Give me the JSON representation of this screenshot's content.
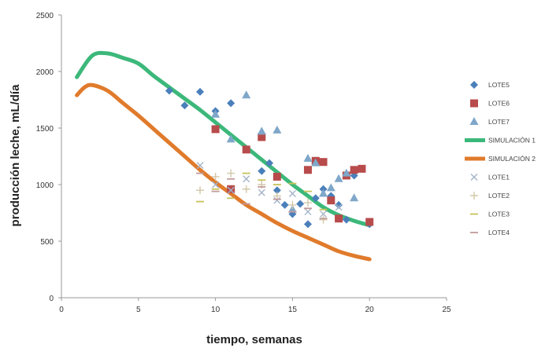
{
  "chart_data": {
    "type": "scatter",
    "title": "",
    "xlabel": "tiempo, semanas",
    "ylabel": "producción leche, mL/día",
    "xlim": [
      0,
      25
    ],
    "ylim": [
      0,
      2500
    ],
    "xticks": [
      0,
      5,
      10,
      15,
      20,
      25
    ],
    "yticks": [
      0,
      500,
      1000,
      1500,
      2000,
      2500
    ],
    "grid": false,
    "legend_position": "right",
    "series": [
      {
        "name": "LOTE5",
        "kind": "scatter",
        "marker": "diamond",
        "color": "#4a7fba",
        "points": [
          [
            7,
            1830
          ],
          [
            8,
            1700
          ],
          [
            9,
            1820
          ],
          [
            10,
            1650
          ],
          [
            11,
            1720
          ],
          [
            13,
            1120
          ],
          [
            13.5,
            1190
          ],
          [
            14,
            950
          ],
          [
            14.5,
            820
          ],
          [
            15,
            740
          ],
          [
            15.5,
            830
          ],
          [
            16,
            650
          ],
          [
            16.5,
            880
          ],
          [
            17,
            960
          ],
          [
            17.5,
            900
          ],
          [
            18,
            820
          ],
          [
            18.5,
            690
          ],
          [
            19,
            1080
          ],
          [
            20,
            650
          ]
        ]
      },
      {
        "name": "LOTE6",
        "kind": "scatter",
        "marker": "square",
        "color": "#b84b4b",
        "points": [
          [
            10,
            1490
          ],
          [
            11,
            960
          ],
          [
            12,
            1310
          ],
          [
            13,
            1420
          ],
          [
            14,
            1070
          ],
          [
            16,
            1130
          ],
          [
            16.5,
            1210
          ],
          [
            17,
            1200
          ],
          [
            17.5,
            860
          ],
          [
            18,
            700
          ],
          [
            18.5,
            1080
          ],
          [
            19,
            1130
          ],
          [
            19.5,
            1140
          ],
          [
            20,
            670
          ]
        ]
      },
      {
        "name": "LOTE7",
        "kind": "scatter",
        "marker": "triangle",
        "color": "#7fa7c9",
        "points": [
          [
            10,
            1620
          ],
          [
            11,
            1400
          ],
          [
            12,
            1790
          ],
          [
            13,
            1470
          ],
          [
            14,
            1480
          ],
          [
            15,
            780
          ],
          [
            16,
            1230
          ],
          [
            16.5,
            1190
          ],
          [
            17,
            920
          ],
          [
            17.5,
            970
          ],
          [
            18,
            1050
          ],
          [
            18.5,
            1100
          ],
          [
            19,
            880
          ]
        ]
      },
      {
        "name": "SIMULACIÓN 1",
        "kind": "line",
        "color": "#3cb87a",
        "points": [
          [
            1,
            1950
          ],
          [
            2,
            2140
          ],
          [
            3,
            2160
          ],
          [
            4,
            2120
          ],
          [
            5,
            2070
          ],
          [
            6,
            1960
          ],
          [
            7,
            1860
          ],
          [
            8,
            1760
          ],
          [
            9,
            1660
          ],
          [
            10,
            1550
          ],
          [
            11,
            1440
          ],
          [
            12,
            1330
          ],
          [
            13,
            1220
          ],
          [
            14,
            1110
          ],
          [
            15,
            1000
          ],
          [
            16,
            900
          ],
          [
            17,
            800
          ],
          [
            18,
            730
          ],
          [
            19,
            680
          ],
          [
            20,
            640
          ]
        ]
      },
      {
        "name": "SIMULACIÓN 2",
        "kind": "line",
        "color": "#e07b2c",
        "points": [
          [
            1,
            1790
          ],
          [
            1.5,
            1860
          ],
          [
            2,
            1880
          ],
          [
            3,
            1830
          ],
          [
            4,
            1720
          ],
          [
            5,
            1610
          ],
          [
            6,
            1490
          ],
          [
            7,
            1370
          ],
          [
            8,
            1250
          ],
          [
            9,
            1130
          ],
          [
            10,
            1020
          ],
          [
            11,
            920
          ],
          [
            12,
            820
          ],
          [
            13,
            740
          ],
          [
            14,
            660
          ],
          [
            15,
            590
          ],
          [
            16,
            530
          ],
          [
            17,
            470
          ],
          [
            18,
            410
          ],
          [
            19,
            370
          ],
          [
            20,
            340
          ]
        ]
      },
      {
        "name": "LOTE1",
        "kind": "scatter",
        "marker": "x",
        "color": "#a3b3c8",
        "points": [
          [
            9,
            1170
          ],
          [
            10,
            1000
          ],
          [
            11,
            950
          ],
          [
            12,
            1050
          ],
          [
            13,
            930
          ],
          [
            14,
            860
          ],
          [
            15,
            920
          ],
          [
            16,
            760
          ],
          [
            17,
            740
          ],
          [
            18,
            800
          ]
        ]
      },
      {
        "name": "LOTE2",
        "kind": "scatter",
        "marker": "plus",
        "color": "#d2c7a8",
        "points": [
          [
            9,
            950
          ],
          [
            10,
            1070
          ],
          [
            11,
            1100
          ],
          [
            12,
            960
          ],
          [
            13,
            1000
          ],
          [
            14,
            900
          ],
          [
            15,
            820
          ],
          [
            16,
            840
          ],
          [
            17,
            690
          ]
        ]
      },
      {
        "name": "LOTE3",
        "kind": "scatter",
        "marker": "dash",
        "color": "#c8c25a",
        "points": [
          [
            9,
            850
          ],
          [
            10,
            960
          ],
          [
            11,
            880
          ],
          [
            12,
            1100
          ],
          [
            13,
            1040
          ],
          [
            14,
            1000
          ],
          [
            15,
            1010
          ],
          [
            16,
            940
          ],
          [
            17,
            780
          ]
        ]
      },
      {
        "name": "LOTE4",
        "kind": "scatter",
        "marker": "dash",
        "color": "#c29a9a",
        "points": [
          [
            9,
            1100
          ],
          [
            10,
            940
          ],
          [
            11,
            1050
          ],
          [
            12,
            830
          ],
          [
            13,
            980
          ],
          [
            14,
            870
          ],
          [
            15,
            760
          ],
          [
            16,
            790
          ],
          [
            17,
            700
          ]
        ]
      }
    ]
  }
}
